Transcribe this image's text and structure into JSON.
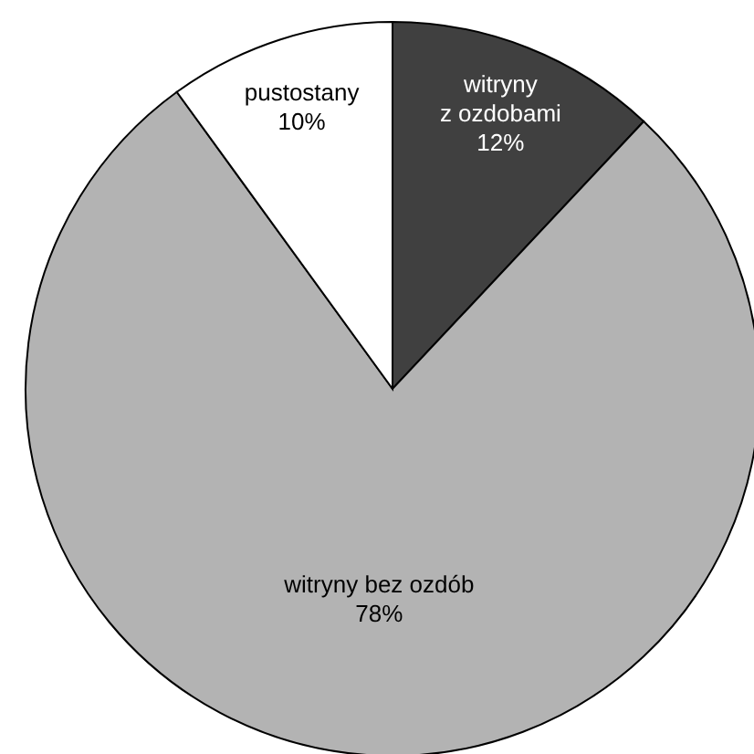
{
  "chart_data": {
    "type": "pie",
    "categories": [
      "witryny z ozdobami",
      "witryny bez ozdób",
      "pustostany"
    ],
    "values": [
      12,
      78,
      10
    ],
    "value_labels": [
      "12%",
      "78%",
      "10%"
    ],
    "colors": [
      "#404040",
      "#b3b3b3",
      "#ffffff"
    ]
  }
}
